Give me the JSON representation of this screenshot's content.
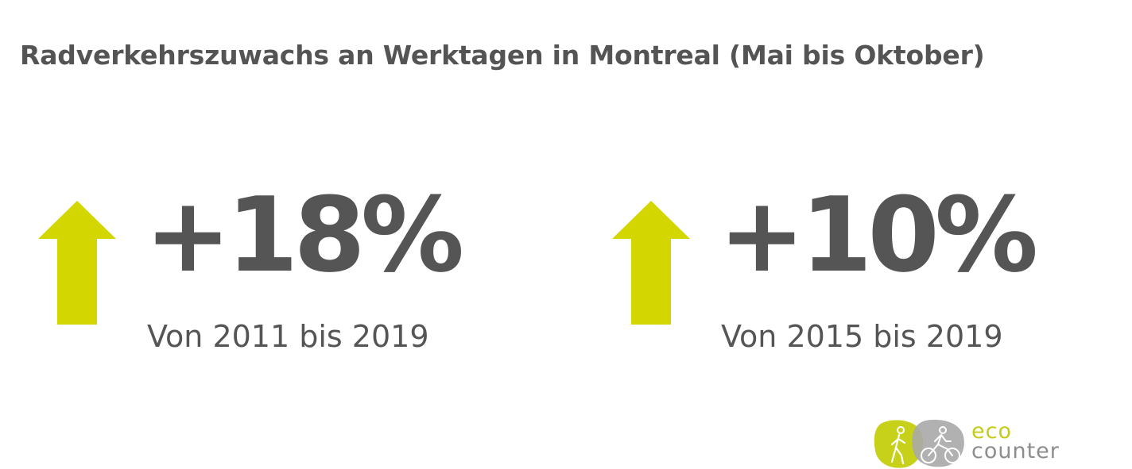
{
  "title": "Radverkehrszuwachs an Werktagen in Montreal (Mai bis Oktober)",
  "colors": {
    "arrow": "#d4d600",
    "text": "#555555",
    "logo_eco": "#c4cc1a",
    "logo_counter": "#8d8d8d",
    "logo_pedestrian_blob": "#c8d11a",
    "logo_bike_blob": "#a9a9a9"
  },
  "stats": [
    {
      "value": "+18%",
      "period": "Von 2011 bis 2019",
      "trend": "up",
      "icon": "up-arrow-icon"
    },
    {
      "value": "+10%",
      "period": "Von 2015 bis 2019",
      "trend": "up",
      "icon": "up-arrow-icon"
    }
  ],
  "logo": {
    "word_top": "eco",
    "word_bottom": "counter",
    "icons": [
      "pedestrian-icon",
      "cyclist-icon"
    ]
  }
}
